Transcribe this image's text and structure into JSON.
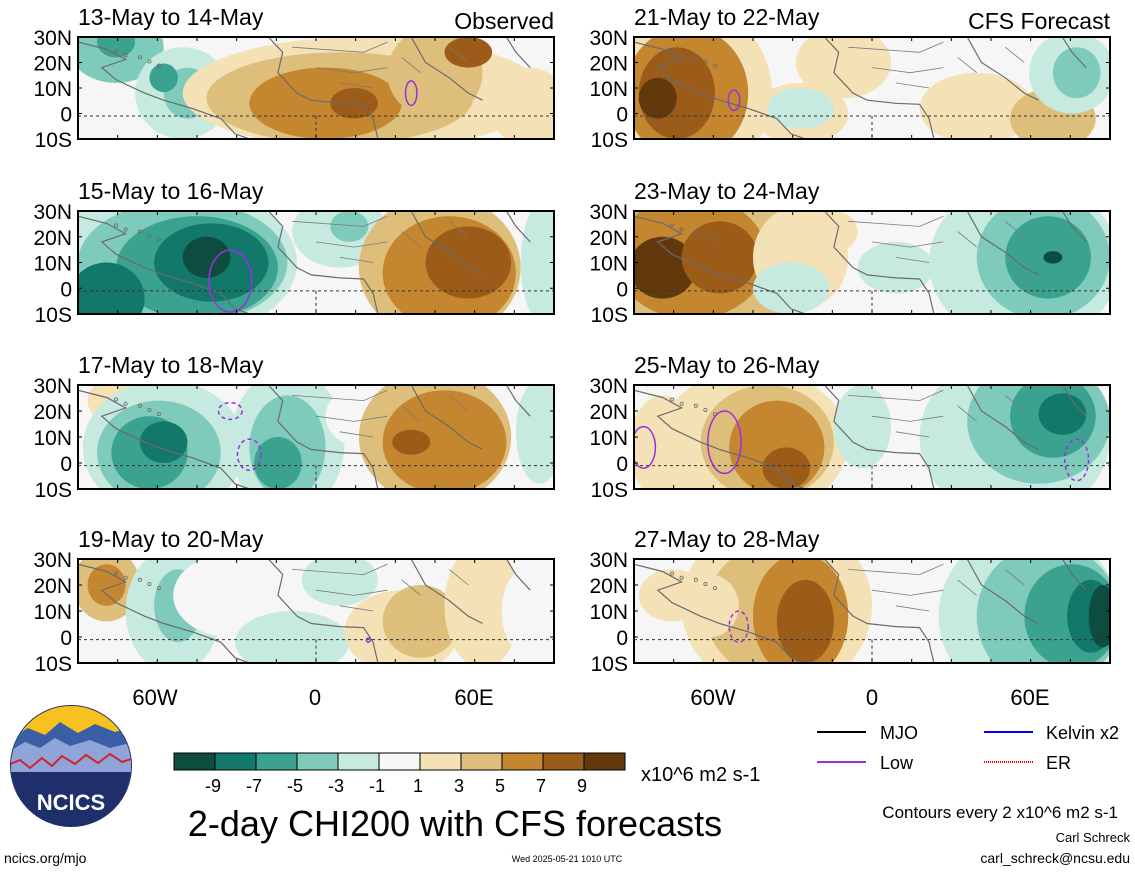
{
  "chart_data": {
    "type": "heatmap",
    "title": "2-day CHI200 with CFS forecasts",
    "panel_types": {
      "left": "Observed",
      "right": "CFS Forecast"
    },
    "colorbar": {
      "units": "x10^6 m2 s-1",
      "tick_labels": [
        "-9",
        "-7",
        "-5",
        "-3",
        "-1",
        "1",
        "3",
        "5",
        "7",
        "9"
      ],
      "colors": [
        "#0c4d40",
        "#12786a",
        "#3aa28f",
        "#7fcbbb",
        "#c6eae0",
        "#f6f6f6",
        "#f4e2b6",
        "#ddbf7b",
        "#c4862f",
        "#9b5c1a",
        "#62380d"
      ]
    },
    "lat_labels": [
      "30N",
      "20N",
      "10N",
      "0",
      "10S"
    ],
    "lon_labels": [
      "60W",
      "0",
      "60E"
    ],
    "panels": [
      {
        "title": "13-May to 14-May",
        "kind": "Observed"
      },
      {
        "title": "15-May to 16-May",
        "kind": "Observed"
      },
      {
        "title": "17-May to 18-May",
        "kind": "Observed"
      },
      {
        "title": "19-May to 20-May",
        "kind": "Observed"
      },
      {
        "title": "21-May to 22-May",
        "kind": "CFS Forecast"
      },
      {
        "title": "23-May to 24-May",
        "kind": "CFS Forecast"
      },
      {
        "title": "25-May to 26-May",
        "kind": "CFS Forecast"
      },
      {
        "title": "27-May to 28-May",
        "kind": "CFS Forecast"
      }
    ],
    "legend": [
      {
        "label": "MJO",
        "color": "#000000"
      },
      {
        "label": "Kelvin x2",
        "color": "#0000ee"
      },
      {
        "label": "Low",
        "color": "#9a2fe0"
      },
      {
        "label": "ER",
        "color": "#ee0000"
      }
    ],
    "contour_note": "Contours every 2 x10^6 m2 s-1"
  },
  "footer": {
    "logo_text": "NCICS",
    "left": "ncics.org/mjo",
    "timestamp": "Wed 2025-05-21 1010 UTC",
    "author": "Carl Schreck",
    "email": "carl_schreck@ncsu.edu"
  }
}
